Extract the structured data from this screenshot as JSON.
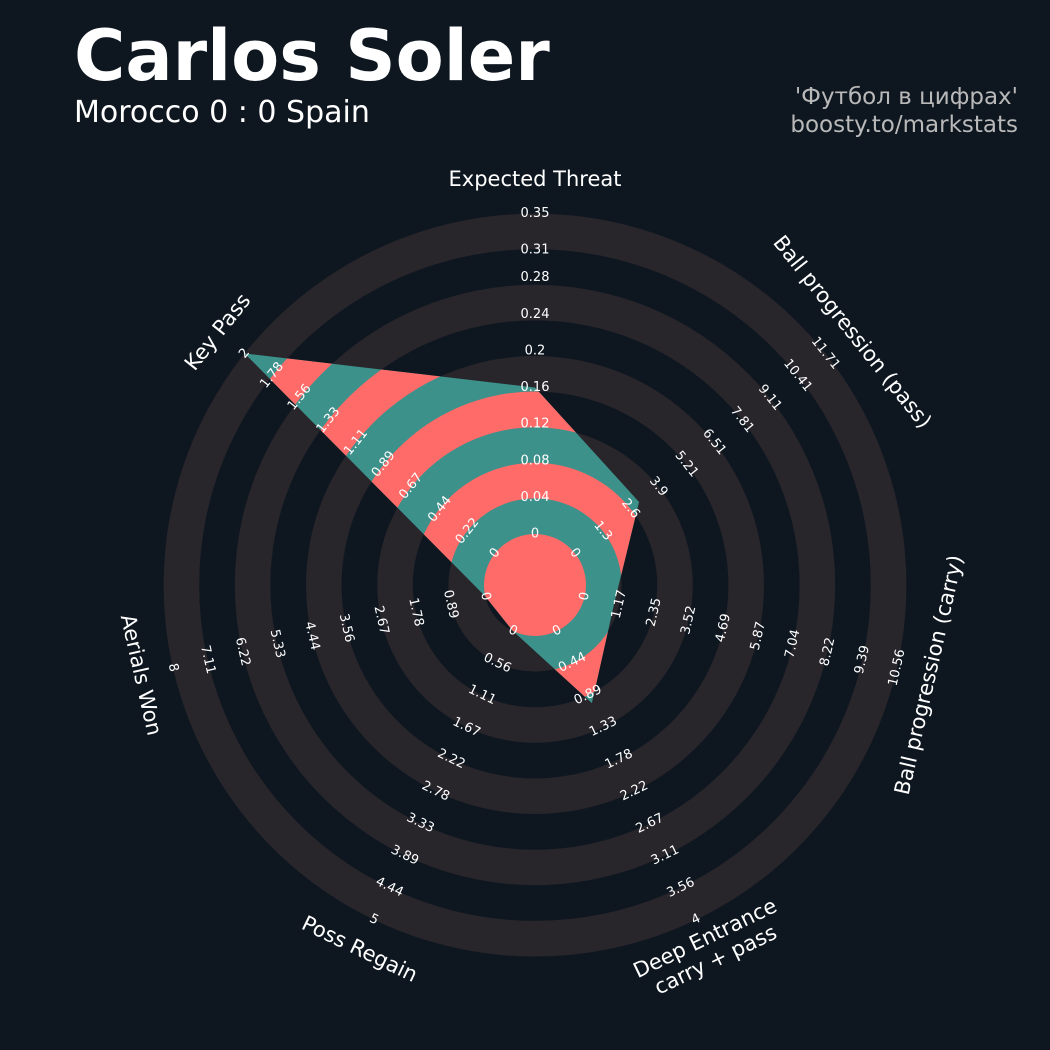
{
  "chart_data": {
    "type": "radar",
    "title": "Carlos Soler",
    "subtitle": "Morocco 0 : 0 Spain",
    "credits": [
      "'Футбол в цифрах'",
      "boosty.to/markstats"
    ],
    "params": [
      {
        "name": "Expected Threat",
        "lim": [
          0.0,
          0.35
        ],
        "ticks": [
          0.0,
          0.04,
          0.08,
          0.12,
          0.16,
          0.2,
          0.24,
          0.28,
          0.31,
          0.35
        ]
      },
      {
        "name": "Ball progression (pass)",
        "lim": [
          0.0,
          11.71
        ],
        "ticks": [
          0.0,
          1.3,
          2.6,
          3.9,
          5.21,
          6.51,
          7.81,
          9.11,
          10.41,
          11.71
        ]
      },
      {
        "name": "Ball progression (carry)",
        "lim": [
          0.0,
          10.56
        ],
        "ticks": [
          0.0,
          1.17,
          2.35,
          3.52,
          4.69,
          5.87,
          7.04,
          8.22,
          9.39,
          10.56
        ]
      },
      {
        "name": "Deep Entrance\ncarry + pass",
        "lim": [
          0.0,
          4.0
        ],
        "ticks": [
          0.0,
          0.44,
          0.89,
          1.33,
          1.78,
          2.22,
          2.67,
          3.11,
          3.56,
          4.0
        ]
      },
      {
        "name": "Poss Regain",
        "lim": [
          0.0,
          5.0
        ],
        "ticks": [
          0.0,
          0.56,
          1.11,
          1.67,
          2.22,
          2.78,
          3.33,
          3.89,
          4.44,
          5.0
        ]
      },
      {
        "name": "Aerials Won",
        "lim": [
          0.0,
          8.0
        ],
        "ticks": [
          0.0,
          0.89,
          1.78,
          2.67,
          3.56,
          4.44,
          5.33,
          6.22,
          7.11,
          8.0
        ]
      },
      {
        "name": "Key Pass",
        "lim": [
          0.0,
          2.0
        ],
        "ticks": [
          0.0,
          0.22,
          0.44,
          0.67,
          0.89,
          1.11,
          1.33,
          1.56,
          1.78,
          2.0
        ]
      }
    ],
    "values": [
      0.16,
      3.0,
      1.0,
      1.0,
      0.0,
      0.0,
      2.0
    ],
    "color": "#3d918b",
    "ring_color": "#ff6b68",
    "band_color": "#28252b"
  }
}
